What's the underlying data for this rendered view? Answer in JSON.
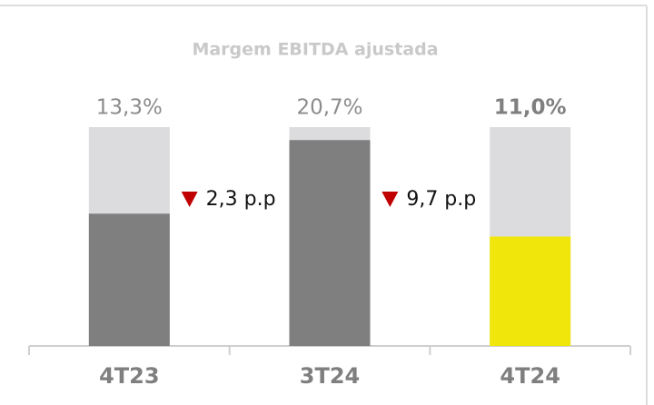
{
  "chart_data": {
    "type": "bar",
    "title": "Margem EBITDA ajustada",
    "categories": [
      "4T23",
      "3T24",
      "4T24"
    ],
    "values": [
      13.3,
      20.7,
      11.0
    ],
    "value_labels": [
      "13,3%",
      "20,7%",
      "11,0%"
    ],
    "bold_labels": [
      false,
      false,
      true
    ],
    "colors": [
      "#7f7f7f",
      "#7f7f7f",
      "#f0e60c"
    ],
    "background_color": "#dcdcde",
    "ylim": [
      0,
      22
    ],
    "annotations": [
      "2,3 p.p",
      "9,7 p.p"
    ],
    "annotation_color": "#c00000"
  }
}
